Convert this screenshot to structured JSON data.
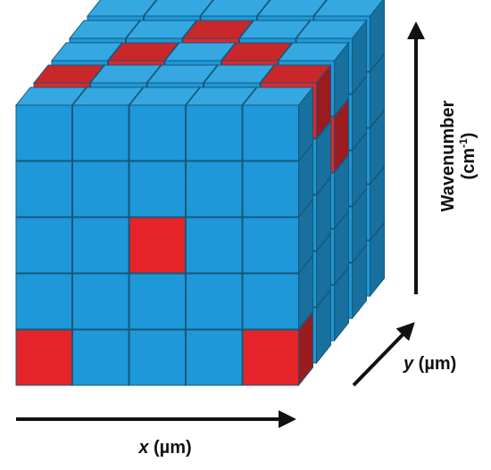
{
  "labels": {
    "x": {
      "var": "x",
      "unit": " (µm)"
    },
    "y": {
      "var": "y",
      "unit": " (µm)"
    },
    "wavenumber": {
      "name": "Wavenumber",
      "unit": "(cm",
      "exp": "-1",
      "close": ")"
    }
  }
}
